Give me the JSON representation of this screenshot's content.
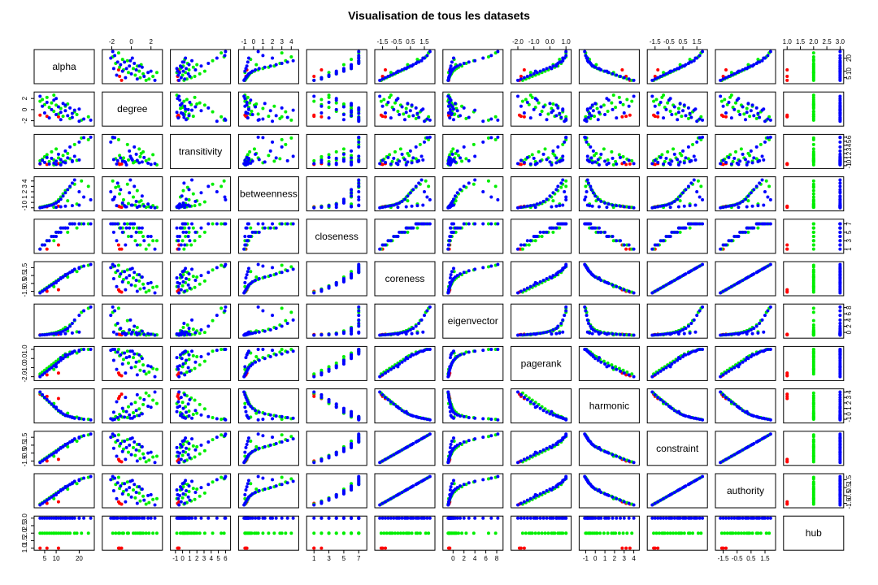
{
  "chart_data": {
    "type": "scatter",
    "title": "Visualisation de tous les datasets",
    "variables": [
      "alpha",
      "degree",
      "transitivity",
      "betweenness",
      "closeness",
      "coreness",
      "eigenvector",
      "pagerank",
      "harmonic",
      "constraint",
      "authority",
      "hub"
    ],
    "ticks": {
      "alpha": {
        "labels": [
          "5",
          "10",
          "20"
        ],
        "values": [
          5,
          10,
          20
        ],
        "range": [
          2,
          25
        ]
      },
      "degree": {
        "labels": [
          "-2",
          "0",
          "2"
        ],
        "values": [
          -2,
          0,
          2
        ],
        "range": [
          -2.6,
          2.8
        ]
      },
      "transitivity": {
        "labels": [
          "-1",
          "0",
          "1",
          "2",
          "3",
          "4",
          "5",
          "6"
        ],
        "values": [
          -1,
          0,
          1,
          2,
          3,
          4,
          5,
          6
        ],
        "range": [
          -1.2,
          6.2
        ]
      },
      "betweenness": {
        "labels": [
          "-1",
          "0",
          "1",
          "2",
          "3",
          "4"
        ],
        "values": [
          -1,
          0,
          1,
          2,
          3,
          4
        ],
        "range": [
          -1.2,
          4.4
        ]
      },
      "closeness": {
        "labels": [
          "1",
          "3",
          "5",
          "7"
        ],
        "values": [
          1,
          3,
          5,
          7
        ],
        "range": [
          0.5,
          7.6
        ]
      },
      "coreness": {
        "labels": [
          "-1.5",
          "-0.5",
          "0.5",
          "1.5"
        ],
        "values": [
          -1.5,
          -0.5,
          0.5,
          1.5
        ],
        "range": [
          -1.8,
          2.0
        ]
      },
      "eigenvector": {
        "labels": [
          "0",
          "2",
          "4",
          "6",
          "8"
        ],
        "values": [
          0,
          2,
          4,
          6,
          8
        ],
        "range": [
          -1.2,
          8.5
        ]
      },
      "pagerank": {
        "labels": [
          "-2.0",
          "-1.0",
          "0.0",
          "1.0"
        ],
        "values": [
          -2,
          -1,
          0,
          1
        ],
        "range": [
          -2.2,
          1.1
        ]
      },
      "harmonic": {
        "labels": [
          "-1",
          "0",
          "1",
          "2",
          "3",
          "4"
        ],
        "values": [
          -1,
          0,
          1,
          2,
          3,
          4
        ],
        "range": [
          -1.3,
          4.2
        ]
      },
      "constraint": {
        "labels": [
          "-1.5",
          "-0.5",
          "0.5",
          "1.5"
        ],
        "values": [
          -1.5,
          -0.5,
          0.5,
          1.5
        ],
        "range": [
          -1.8,
          2.0
        ]
      },
      "authority": {
        "labels": [
          "-1.5",
          "-0.5",
          "0.5",
          "1.5"
        ],
        "values": [
          -1.5,
          -0.5,
          0.5,
          1.5
        ],
        "range": [
          -1.8,
          2.0
        ]
      },
      "hub": {
        "labels": [
          "1.0",
          "1.5",
          "2.0",
          "2.5",
          "3.0"
        ],
        "values": [
          1,
          1.5,
          2,
          2.5,
          3
        ],
        "range": [
          1,
          3
        ]
      }
    },
    "groups": [
      {
        "hub": 1,
        "color": "#ff0000"
      },
      {
        "hub": 2,
        "color": "#00ee00"
      },
      {
        "hub": 3,
        "color": "#0000ff"
      }
    ],
    "points": [
      {
        "hub": 1,
        "alpha": 3,
        "degree": -1.0,
        "transitivity": -0.6,
        "betweenness": -0.9,
        "closeness": 1,
        "coreness": -1.6,
        "eigenvector": -0.8,
        "pagerank": -1.9,
        "harmonic": 3.6,
        "constraint": -1.6,
        "authority": -1.6
      },
      {
        "hub": 1,
        "alpha": 6,
        "degree": -1.2,
        "transitivity": -0.7,
        "betweenness": -0.8,
        "closeness": 1,
        "coreness": -1.5,
        "eigenvector": -0.7,
        "pagerank": -1.8,
        "harmonic": 3.2,
        "constraint": -1.5,
        "authority": -1.5
      },
      {
        "hub": 1,
        "alpha": 11,
        "degree": -1.3,
        "transitivity": -0.5,
        "betweenness": -0.7,
        "closeness": 2,
        "coreness": -1.3,
        "eigenvector": -0.6,
        "pagerank": -1.6,
        "harmonic": 2.8,
        "constraint": -1.3,
        "authority": -1.3
      },
      {
        "hub": 2,
        "alpha": 3,
        "degree": 1.5,
        "transitivity": 0.2,
        "betweenness": -0.9,
        "closeness": 1,
        "coreness": -1.6,
        "eigenvector": -0.9,
        "pagerank": -1.7,
        "harmonic": 3.8,
        "constraint": -1.6,
        "authority": -1.6
      },
      {
        "hub": 2,
        "alpha": 4,
        "degree": 1.8,
        "transitivity": 0.6,
        "betweenness": -0.8,
        "closeness": 2,
        "coreness": -1.4,
        "eigenvector": -0.8,
        "pagerank": -1.5,
        "harmonic": 3.3,
        "constraint": -1.4,
        "authority": -1.4
      },
      {
        "hub": 2,
        "alpha": 5,
        "degree": 0.9,
        "transitivity": 1.2,
        "betweenness": -0.7,
        "closeness": 2,
        "coreness": -1.2,
        "eigenvector": -0.7,
        "pagerank": -1.3,
        "harmonic": 2.9,
        "constraint": -1.2,
        "authority": -1.2
      },
      {
        "hub": 2,
        "alpha": 6,
        "degree": 2.2,
        "transitivity": 1.7,
        "betweenness": -0.6,
        "closeness": 3,
        "coreness": -1.0,
        "eigenvector": -0.6,
        "pagerank": -1.1,
        "harmonic": 2.5,
        "constraint": -1.0,
        "authority": -1.0
      },
      {
        "hub": 2,
        "alpha": 7,
        "degree": 0.4,
        "transitivity": 0.0,
        "betweenness": -0.5,
        "closeness": 3,
        "coreness": -0.8,
        "eigenvector": -0.5,
        "pagerank": -0.9,
        "harmonic": 2.1,
        "constraint": -0.8,
        "authority": -0.8
      },
      {
        "hub": 2,
        "alpha": 8,
        "degree": 1.2,
        "transitivity": 2.4,
        "betweenness": -0.4,
        "closeness": 4,
        "coreness": -0.6,
        "eigenvector": -0.3,
        "pagerank": -0.7,
        "harmonic": 1.7,
        "constraint": -0.6,
        "authority": -0.6
      },
      {
        "hub": 2,
        "alpha": 9,
        "degree": -0.3,
        "transitivity": 0.4,
        "betweenness": -0.2,
        "closeness": 4,
        "coreness": -0.4,
        "eigenvector": -0.2,
        "pagerank": -0.5,
        "harmonic": 1.3,
        "constraint": -0.4,
        "authority": -0.4
      },
      {
        "hub": 2,
        "alpha": 10,
        "degree": 0.8,
        "transitivity": 3.1,
        "betweenness": 0.1,
        "closeness": 5,
        "coreness": -0.2,
        "eigenvector": 0.0,
        "pagerank": -0.3,
        "harmonic": 0.9,
        "constraint": -0.2,
        "authority": -0.2
      },
      {
        "hub": 2,
        "alpha": 11,
        "degree": -0.8,
        "transitivity": 0.9,
        "betweenness": 0.5,
        "closeness": 5,
        "coreness": 0.0,
        "eigenvector": 0.3,
        "pagerank": -0.1,
        "harmonic": 0.5,
        "constraint": 0.0,
        "authority": 0.0
      },
      {
        "hub": 2,
        "alpha": 12,
        "degree": 0.2,
        "transitivity": -0.3,
        "betweenness": 1.0,
        "closeness": 6,
        "coreness": 0.2,
        "eigenvector": 0.6,
        "pagerank": 0.1,
        "harmonic": 0.2,
        "constraint": 0.2,
        "authority": 0.2
      },
      {
        "hub": 2,
        "alpha": 13,
        "degree": -1.2,
        "transitivity": 1.5,
        "betweenness": 1.6,
        "closeness": 6,
        "coreness": 0.4,
        "eigenvector": 1.0,
        "pagerank": 0.3,
        "harmonic": -0.1,
        "constraint": 0.4,
        "authority": 0.4
      },
      {
        "hub": 2,
        "alpha": 14,
        "degree": 0.6,
        "transitivity": 0.1,
        "betweenness": 2.2,
        "closeness": 6,
        "coreness": 0.6,
        "eigenvector": 1.6,
        "pagerank": 0.5,
        "harmonic": -0.3,
        "constraint": 0.6,
        "authority": 0.6
      },
      {
        "hub": 2,
        "alpha": 16,
        "degree": -1.6,
        "transitivity": 0.7,
        "betweenness": 2.8,
        "closeness": 7,
        "coreness": 0.9,
        "eigenvector": 2.4,
        "pagerank": 0.7,
        "harmonic": -0.5,
        "constraint": 0.9,
        "authority": 0.9
      },
      {
        "hub": 2,
        "alpha": 18,
        "degree": -0.4,
        "transitivity": 4.2,
        "betweenness": 3.4,
        "closeness": 7,
        "coreness": 1.2,
        "eigenvector": 3.8,
        "pagerank": 0.8,
        "harmonic": -0.7,
        "constraint": 1.2,
        "authority": 1.2
      },
      {
        "hub": 2,
        "alpha": 21,
        "degree": -1.9,
        "transitivity": 5.8,
        "betweenness": 4.0,
        "closeness": 7,
        "coreness": 1.6,
        "eigenvector": 6.5,
        "pagerank": 1.0,
        "harmonic": -0.9,
        "constraint": 1.6,
        "authority": 1.6
      },
      {
        "hub": 2,
        "alpha": 24,
        "degree": -1.3,
        "transitivity": 5.4,
        "betweenness": 3.0,
        "closeness": 7,
        "coreness": 1.8,
        "eigenvector": 7.8,
        "pagerank": 1.0,
        "harmonic": -1.0,
        "constraint": 1.8,
        "authority": 1.8
      },
      {
        "hub": 2,
        "alpha": 9,
        "degree": 2.6,
        "transitivity": -0.8,
        "betweenness": -0.9,
        "closeness": 3,
        "coreness": -0.9,
        "eigenvector": -0.8,
        "pagerank": -1.2,
        "harmonic": 1.9,
        "constraint": -0.9,
        "authority": -0.9
      },
      {
        "hub": 2,
        "alpha": 15,
        "degree": 1.0,
        "transitivity": 2.0,
        "betweenness": 0.3,
        "closeness": 5,
        "coreness": 0.3,
        "eigenvector": 0.5,
        "pagerank": 0.2,
        "harmonic": 0.1,
        "constraint": 0.3,
        "authority": 0.3
      },
      {
        "hub": 2,
        "alpha": 19,
        "degree": -0.9,
        "transitivity": 0.3,
        "betweenness": -0.3,
        "closeness": 6,
        "coreness": 1.0,
        "eigenvector": 0.2,
        "pagerank": 0.6,
        "harmonic": -0.6,
        "constraint": 1.0,
        "authority": 1.0
      },
      {
        "hub": 3,
        "alpha": 3,
        "degree": 2.4,
        "transitivity": -0.5,
        "betweenness": -1.0,
        "closeness": 1,
        "coreness": -1.7,
        "eigenvector": -0.9,
        "pagerank": -2.0,
        "harmonic": 4.0,
        "constraint": -1.7,
        "authority": -1.7
      },
      {
        "hub": 3,
        "alpha": 4,
        "degree": 0.6,
        "transitivity": 0.3,
        "betweenness": -0.9,
        "closeness": 2,
        "coreness": -1.5,
        "eigenvector": -0.8,
        "pagerank": -1.8,
        "harmonic": 3.5,
        "constraint": -1.5,
        "authority": -1.5
      },
      {
        "hub": 3,
        "alpha": 5,
        "degree": -0.6,
        "transitivity": -0.2,
        "betweenness": -0.8,
        "closeness": 2,
        "coreness": -1.3,
        "eigenvector": -0.8,
        "pagerank": -1.6,
        "harmonic": 3.0,
        "constraint": -1.3,
        "authority": -1.3
      },
      {
        "hub": 3,
        "alpha": 6,
        "degree": 1.3,
        "transitivity": 1.0,
        "betweenness": -0.7,
        "closeness": 3,
        "coreness": -1.1,
        "eigenvector": -0.7,
        "pagerank": -1.4,
        "harmonic": 2.6,
        "constraint": -1.1,
        "authority": -1.1
      },
      {
        "hub": 3,
        "alpha": 7,
        "degree": -1.5,
        "transitivity": -0.6,
        "betweenness": -0.6,
        "closeness": 3,
        "coreness": -0.9,
        "eigenvector": -0.6,
        "pagerank": -1.2,
        "harmonic": 2.2,
        "constraint": -0.9,
        "authority": -0.9
      },
      {
        "hub": 3,
        "alpha": 8,
        "degree": 0.0,
        "transitivity": 0.8,
        "betweenness": -0.5,
        "closeness": 4,
        "coreness": -0.7,
        "eigenvector": -0.5,
        "pagerank": -1.0,
        "harmonic": 1.8,
        "constraint": -0.7,
        "authority": -0.7
      },
      {
        "hub": 3,
        "alpha": 9,
        "degree": 1.7,
        "transitivity": -0.4,
        "betweenness": -0.3,
        "closeness": 4,
        "coreness": -0.5,
        "eigenvector": -0.4,
        "pagerank": -0.8,
        "harmonic": 1.4,
        "constraint": -0.5,
        "authority": -0.5
      },
      {
        "hub": 3,
        "alpha": 10,
        "degree": -0.9,
        "transitivity": 0.1,
        "betweenness": -0.1,
        "closeness": 5,
        "coreness": -0.3,
        "eigenvector": -0.3,
        "pagerank": -0.6,
        "harmonic": 1.0,
        "constraint": -0.3,
        "authority": -0.3
      },
      {
        "hub": 3,
        "alpha": 11,
        "degree": 0.5,
        "transitivity": 1.8,
        "betweenness": 0.2,
        "closeness": 5,
        "coreness": -0.1,
        "eigenvector": -0.1,
        "pagerank": -0.4,
        "harmonic": 0.6,
        "constraint": -0.1,
        "authority": -0.1
      },
      {
        "hub": 3,
        "alpha": 12,
        "degree": -1.8,
        "transitivity": 0.5,
        "betweenness": 0.6,
        "closeness": 5,
        "coreness": 0.1,
        "eigenvector": 0.1,
        "pagerank": -0.2,
        "harmonic": 0.3,
        "constraint": 0.1,
        "authority": 0.1
      },
      {
        "hub": 3,
        "alpha": 13,
        "degree": 1.1,
        "transitivity": -0.1,
        "betweenness": 1.2,
        "closeness": 6,
        "coreness": 0.3,
        "eigenvector": 0.4,
        "pagerank": 0.0,
        "harmonic": 0.0,
        "constraint": 0.3,
        "authority": 0.3
      },
      {
        "hub": 3,
        "alpha": 14,
        "degree": -0.2,
        "transitivity": 2.6,
        "betweenness": 1.8,
        "closeness": 6,
        "coreness": 0.5,
        "eigenvector": 0.8,
        "pagerank": 0.2,
        "harmonic": -0.2,
        "constraint": 0.5,
        "authority": 0.5
      },
      {
        "hub": 3,
        "alpha": 15,
        "degree": -1.1,
        "transitivity": 0.9,
        "betweenness": 2.4,
        "closeness": 6,
        "coreness": 0.7,
        "eigenvector": 1.3,
        "pagerank": 0.4,
        "harmonic": -0.4,
        "constraint": 0.7,
        "authority": 0.7
      },
      {
        "hub": 3,
        "alpha": 16,
        "degree": 0.3,
        "transitivity": 3.6,
        "betweenness": 3.0,
        "closeness": 7,
        "coreness": 0.9,
        "eigenvector": 2.0,
        "pagerank": 0.5,
        "harmonic": -0.5,
        "constraint": 0.9,
        "authority": 0.9
      },
      {
        "hub": 3,
        "alpha": 17,
        "degree": -1.4,
        "transitivity": 0.2,
        "betweenness": 3.6,
        "closeness": 7,
        "coreness": 1.1,
        "eigenvector": 2.9,
        "pagerank": 0.7,
        "harmonic": -0.7,
        "constraint": 1.1,
        "authority": 1.1
      },
      {
        "hub": 3,
        "alpha": 18,
        "degree": -0.1,
        "transitivity": 1.3,
        "betweenness": 4.2,
        "closeness": 7,
        "coreness": 1.3,
        "eigenvector": 4.0,
        "pagerank": 0.8,
        "harmonic": -0.8,
        "constraint": 1.3,
        "authority": 1.3
      },
      {
        "hub": 3,
        "alpha": 20,
        "degree": -2.1,
        "transitivity": 4.8,
        "betweenness": 2.0,
        "closeness": 7,
        "coreness": 1.5,
        "eigenvector": 5.5,
        "pagerank": 0.9,
        "harmonic": -0.9,
        "constraint": 1.5,
        "authority": 1.5
      },
      {
        "hub": 3,
        "alpha": 22,
        "degree": -1.7,
        "transitivity": 5.9,
        "betweenness": 1.0,
        "closeness": 7,
        "coreness": 1.7,
        "eigenvector": 7.0,
        "pagerank": 1.0,
        "harmonic": -1.0,
        "constraint": 1.7,
        "authority": 1.7
      },
      {
        "hub": 3,
        "alpha": 25,
        "degree": -1.9,
        "transitivity": 6.0,
        "betweenness": 0.5,
        "closeness": 7,
        "coreness": 1.9,
        "eigenvector": 8.2,
        "pagerank": 1.0,
        "harmonic": -1.1,
        "constraint": 1.9,
        "authority": 1.9
      },
      {
        "hub": 3,
        "alpha": 10,
        "degree": 2.0,
        "transitivity": -0.7,
        "betweenness": -0.9,
        "closeness": 4,
        "coreness": -0.4,
        "eigenvector": -0.6,
        "pagerank": -0.9,
        "harmonic": 1.2,
        "constraint": -0.4,
        "authority": -0.4
      },
      {
        "hub": 3,
        "alpha": 12,
        "degree": -0.5,
        "transitivity": -0.8,
        "betweenness": -0.8,
        "closeness": 6,
        "coreness": 0.2,
        "eigenvector": -0.5,
        "pagerank": 0.1,
        "harmonic": 0.4,
        "constraint": 0.2,
        "authority": 0.2
      },
      {
        "hub": 3,
        "alpha": 14,
        "degree": 0.8,
        "transitivity": -0.3,
        "betweenness": -0.7,
        "closeness": 6,
        "coreness": 0.6,
        "eigenvector": -0.4,
        "pagerank": 0.4,
        "harmonic": -0.3,
        "constraint": 0.6,
        "authority": 0.6
      },
      {
        "hub": 3,
        "alpha": 17,
        "degree": -0.7,
        "transitivity": 0.0,
        "betweenness": -0.6,
        "closeness": 7,
        "coreness": 1.0,
        "eigenvector": -0.2,
        "pagerank": 0.6,
        "harmonic": -0.6,
        "constraint": 1.0,
        "authority": 1.0
      },
      {
        "hub": 3,
        "alpha": 20,
        "degree": 0.1,
        "transitivity": 0.4,
        "betweenness": -0.5,
        "closeness": 7,
        "coreness": 1.4,
        "eigenvector": 0.1,
        "pagerank": 0.8,
        "harmonic": -0.8,
        "constraint": 1.4,
        "authority": 1.4
      }
    ]
  }
}
